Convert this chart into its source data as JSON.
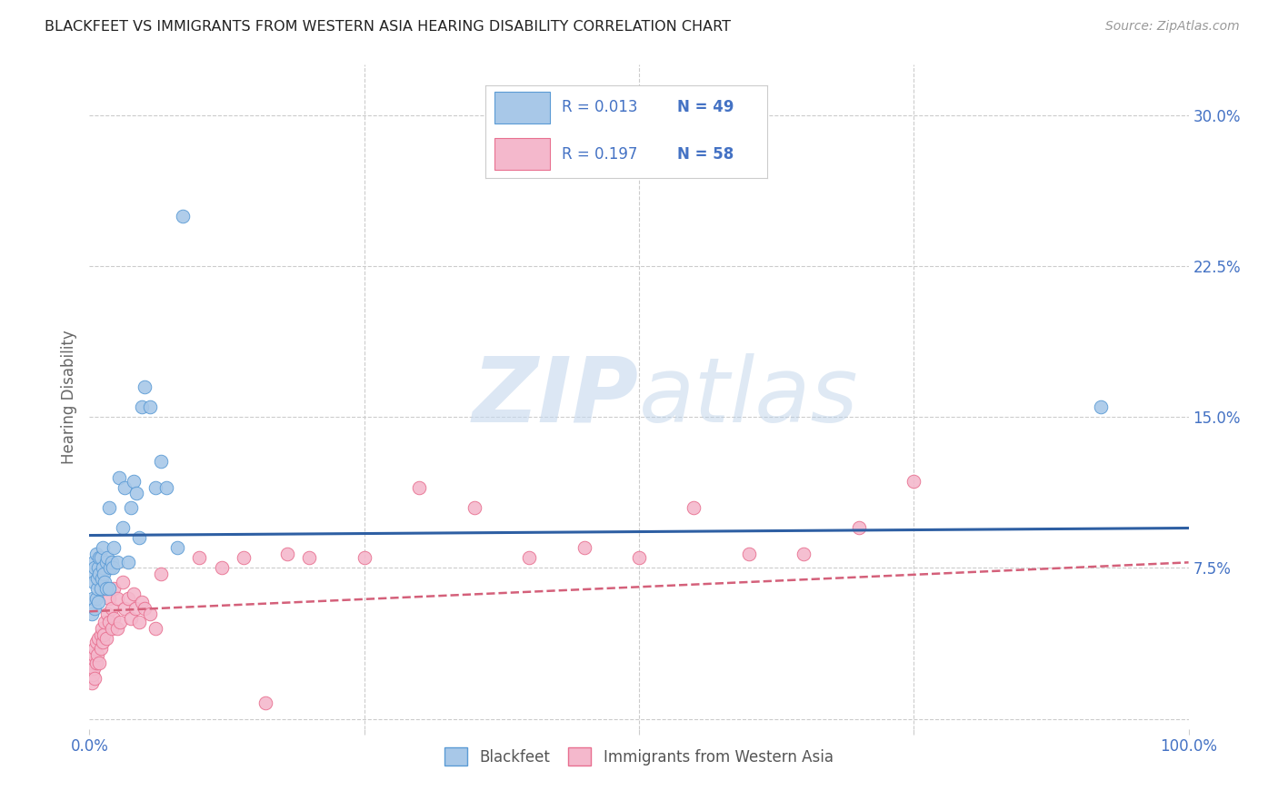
{
  "title": "BLACKFEET VS IMMIGRANTS FROM WESTERN ASIA HEARING DISABILITY CORRELATION CHART",
  "source": "Source: ZipAtlas.com",
  "ylabel": "Hearing Disability",
  "xlim": [
    0,
    1.0
  ],
  "ylim": [
    -0.005,
    0.325
  ],
  "yticks": [
    0.0,
    0.075,
    0.15,
    0.225,
    0.3
  ],
  "yticklabels_right": [
    "",
    "7.5%",
    "15.0%",
    "22.5%",
    "30.0%"
  ],
  "xtick_positions": [
    0.0,
    0.25,
    0.5,
    0.75,
    1.0
  ],
  "xticklabels": [
    "0.0%",
    "",
    "",
    "",
    "100.0%"
  ],
  "background_color": "#ffffff",
  "grid_color": "#cccccc",
  "title_color": "#222222",
  "tick_color": "#4472c4",
  "color_blue": "#a8c8e8",
  "color_pink": "#f4b8cc",
  "edge_blue": "#5b9bd5",
  "edge_pink": "#e87090",
  "line_blue_color": "#2e5fa3",
  "line_pink_color": "#d4607a",
  "watermark_color": "#c5d8ee",
  "legend_color": "#4472c4",
  "blackfeet_x": [
    0.002,
    0.003,
    0.003,
    0.004,
    0.004,
    0.005,
    0.005,
    0.006,
    0.006,
    0.007,
    0.007,
    0.008,
    0.008,
    0.009,
    0.009,
    0.01,
    0.01,
    0.011,
    0.012,
    0.012,
    0.013,
    0.014,
    0.015,
    0.015,
    0.016,
    0.018,
    0.018,
    0.019,
    0.02,
    0.021,
    0.022,
    0.025,
    0.027,
    0.03,
    0.032,
    0.035,
    0.038,
    0.04,
    0.043,
    0.045,
    0.048,
    0.05,
    0.055,
    0.06,
    0.065,
    0.07,
    0.08,
    0.085,
    0.92
  ],
  "blackfeet_y": [
    0.052,
    0.06,
    0.072,
    0.068,
    0.078,
    0.055,
    0.075,
    0.06,
    0.082,
    0.065,
    0.07,
    0.058,
    0.075,
    0.072,
    0.08,
    0.065,
    0.08,
    0.07,
    0.075,
    0.085,
    0.072,
    0.068,
    0.065,
    0.078,
    0.08,
    0.065,
    0.105,
    0.075,
    0.078,
    0.075,
    0.085,
    0.078,
    0.12,
    0.095,
    0.115,
    0.078,
    0.105,
    0.118,
    0.112,
    0.09,
    0.155,
    0.165,
    0.155,
    0.115,
    0.128,
    0.115,
    0.085,
    0.25,
    0.155
  ],
  "immigrants_x": [
    0.002,
    0.003,
    0.003,
    0.004,
    0.004,
    0.005,
    0.005,
    0.006,
    0.006,
    0.007,
    0.008,
    0.009,
    0.01,
    0.01,
    0.011,
    0.012,
    0.013,
    0.014,
    0.015,
    0.016,
    0.018,
    0.018,
    0.02,
    0.02,
    0.022,
    0.022,
    0.025,
    0.025,
    0.028,
    0.03,
    0.032,
    0.035,
    0.038,
    0.04,
    0.042,
    0.045,
    0.048,
    0.05,
    0.055,
    0.06,
    0.065,
    0.1,
    0.12,
    0.14,
    0.16,
    0.18,
    0.2,
    0.25,
    0.3,
    0.35,
    0.4,
    0.45,
    0.5,
    0.55,
    0.6,
    0.65,
    0.7,
    0.75
  ],
  "immigrants_y": [
    0.018,
    0.022,
    0.028,
    0.025,
    0.032,
    0.02,
    0.035,
    0.028,
    0.038,
    0.032,
    0.04,
    0.028,
    0.042,
    0.035,
    0.045,
    0.038,
    0.042,
    0.048,
    0.04,
    0.052,
    0.048,
    0.06,
    0.045,
    0.055,
    0.05,
    0.065,
    0.045,
    0.06,
    0.048,
    0.068,
    0.055,
    0.06,
    0.05,
    0.062,
    0.055,
    0.048,
    0.058,
    0.055,
    0.052,
    0.045,
    0.072,
    0.08,
    0.075,
    0.08,
    0.008,
    0.082,
    0.08,
    0.08,
    0.115,
    0.105,
    0.08,
    0.085,
    0.08,
    0.105,
    0.082,
    0.082,
    0.095,
    0.118
  ]
}
